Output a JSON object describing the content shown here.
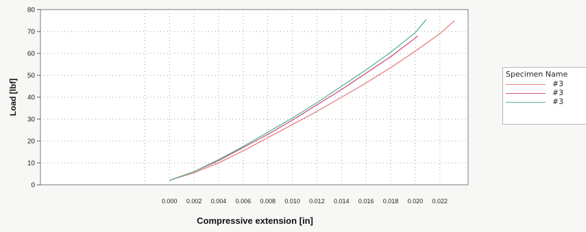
{
  "chart_data": {
    "type": "line",
    "title": "",
    "xlabel": "Compressive extension [in]",
    "ylabel": "Load [lbf]",
    "xlim": [
      -0.0105,
      0.0243
    ],
    "ylim": [
      0,
      80
    ],
    "x_ticks": [
      "0.000",
      "0.002",
      "0.004",
      "0.006",
      "0.008",
      "0.010",
      "0.012",
      "0.014",
      "0.016",
      "0.018",
      "0.020",
      "0.022"
    ],
    "y_ticks": [
      "0",
      "10",
      "20",
      "30",
      "40",
      "50",
      "60",
      "70",
      "80"
    ],
    "grid": true,
    "legend": {
      "title": "Specimen Name",
      "placement": "right"
    },
    "series": [
      {
        "name": "#3",
        "color": "#e2807f",
        "x": [
          0.0,
          0.002,
          0.004,
          0.006,
          0.008,
          0.01,
          0.012,
          0.014,
          0.016,
          0.018,
          0.02,
          0.022,
          0.0232
        ],
        "y": [
          2.0,
          5.5,
          10.0,
          15.5,
          21.5,
          27.5,
          33.5,
          40.0,
          46.5,
          53.5,
          61.0,
          69.0,
          75.0
        ]
      },
      {
        "name": "#3",
        "color": "#cf4e86",
        "x": [
          0.0,
          0.002,
          0.004,
          0.006,
          0.008,
          0.01,
          0.012,
          0.014,
          0.016,
          0.018,
          0.02,
          0.0202
        ],
        "y": [
          2.0,
          6.0,
          11.0,
          17.0,
          23.0,
          29.5,
          36.5,
          43.5,
          51.0,
          58.5,
          67.0,
          68.0
        ]
      },
      {
        "name": "#3",
        "color": "#58b38d",
        "x": [
          0.0,
          0.002,
          0.004,
          0.006,
          0.008,
          0.01,
          0.012,
          0.014,
          0.016,
          0.018,
          0.02,
          0.0209
        ],
        "y": [
          2.0,
          6.0,
          11.5,
          17.5,
          24.0,
          30.5,
          37.5,
          45.0,
          52.5,
          60.5,
          69.5,
          75.5
        ]
      }
    ]
  }
}
